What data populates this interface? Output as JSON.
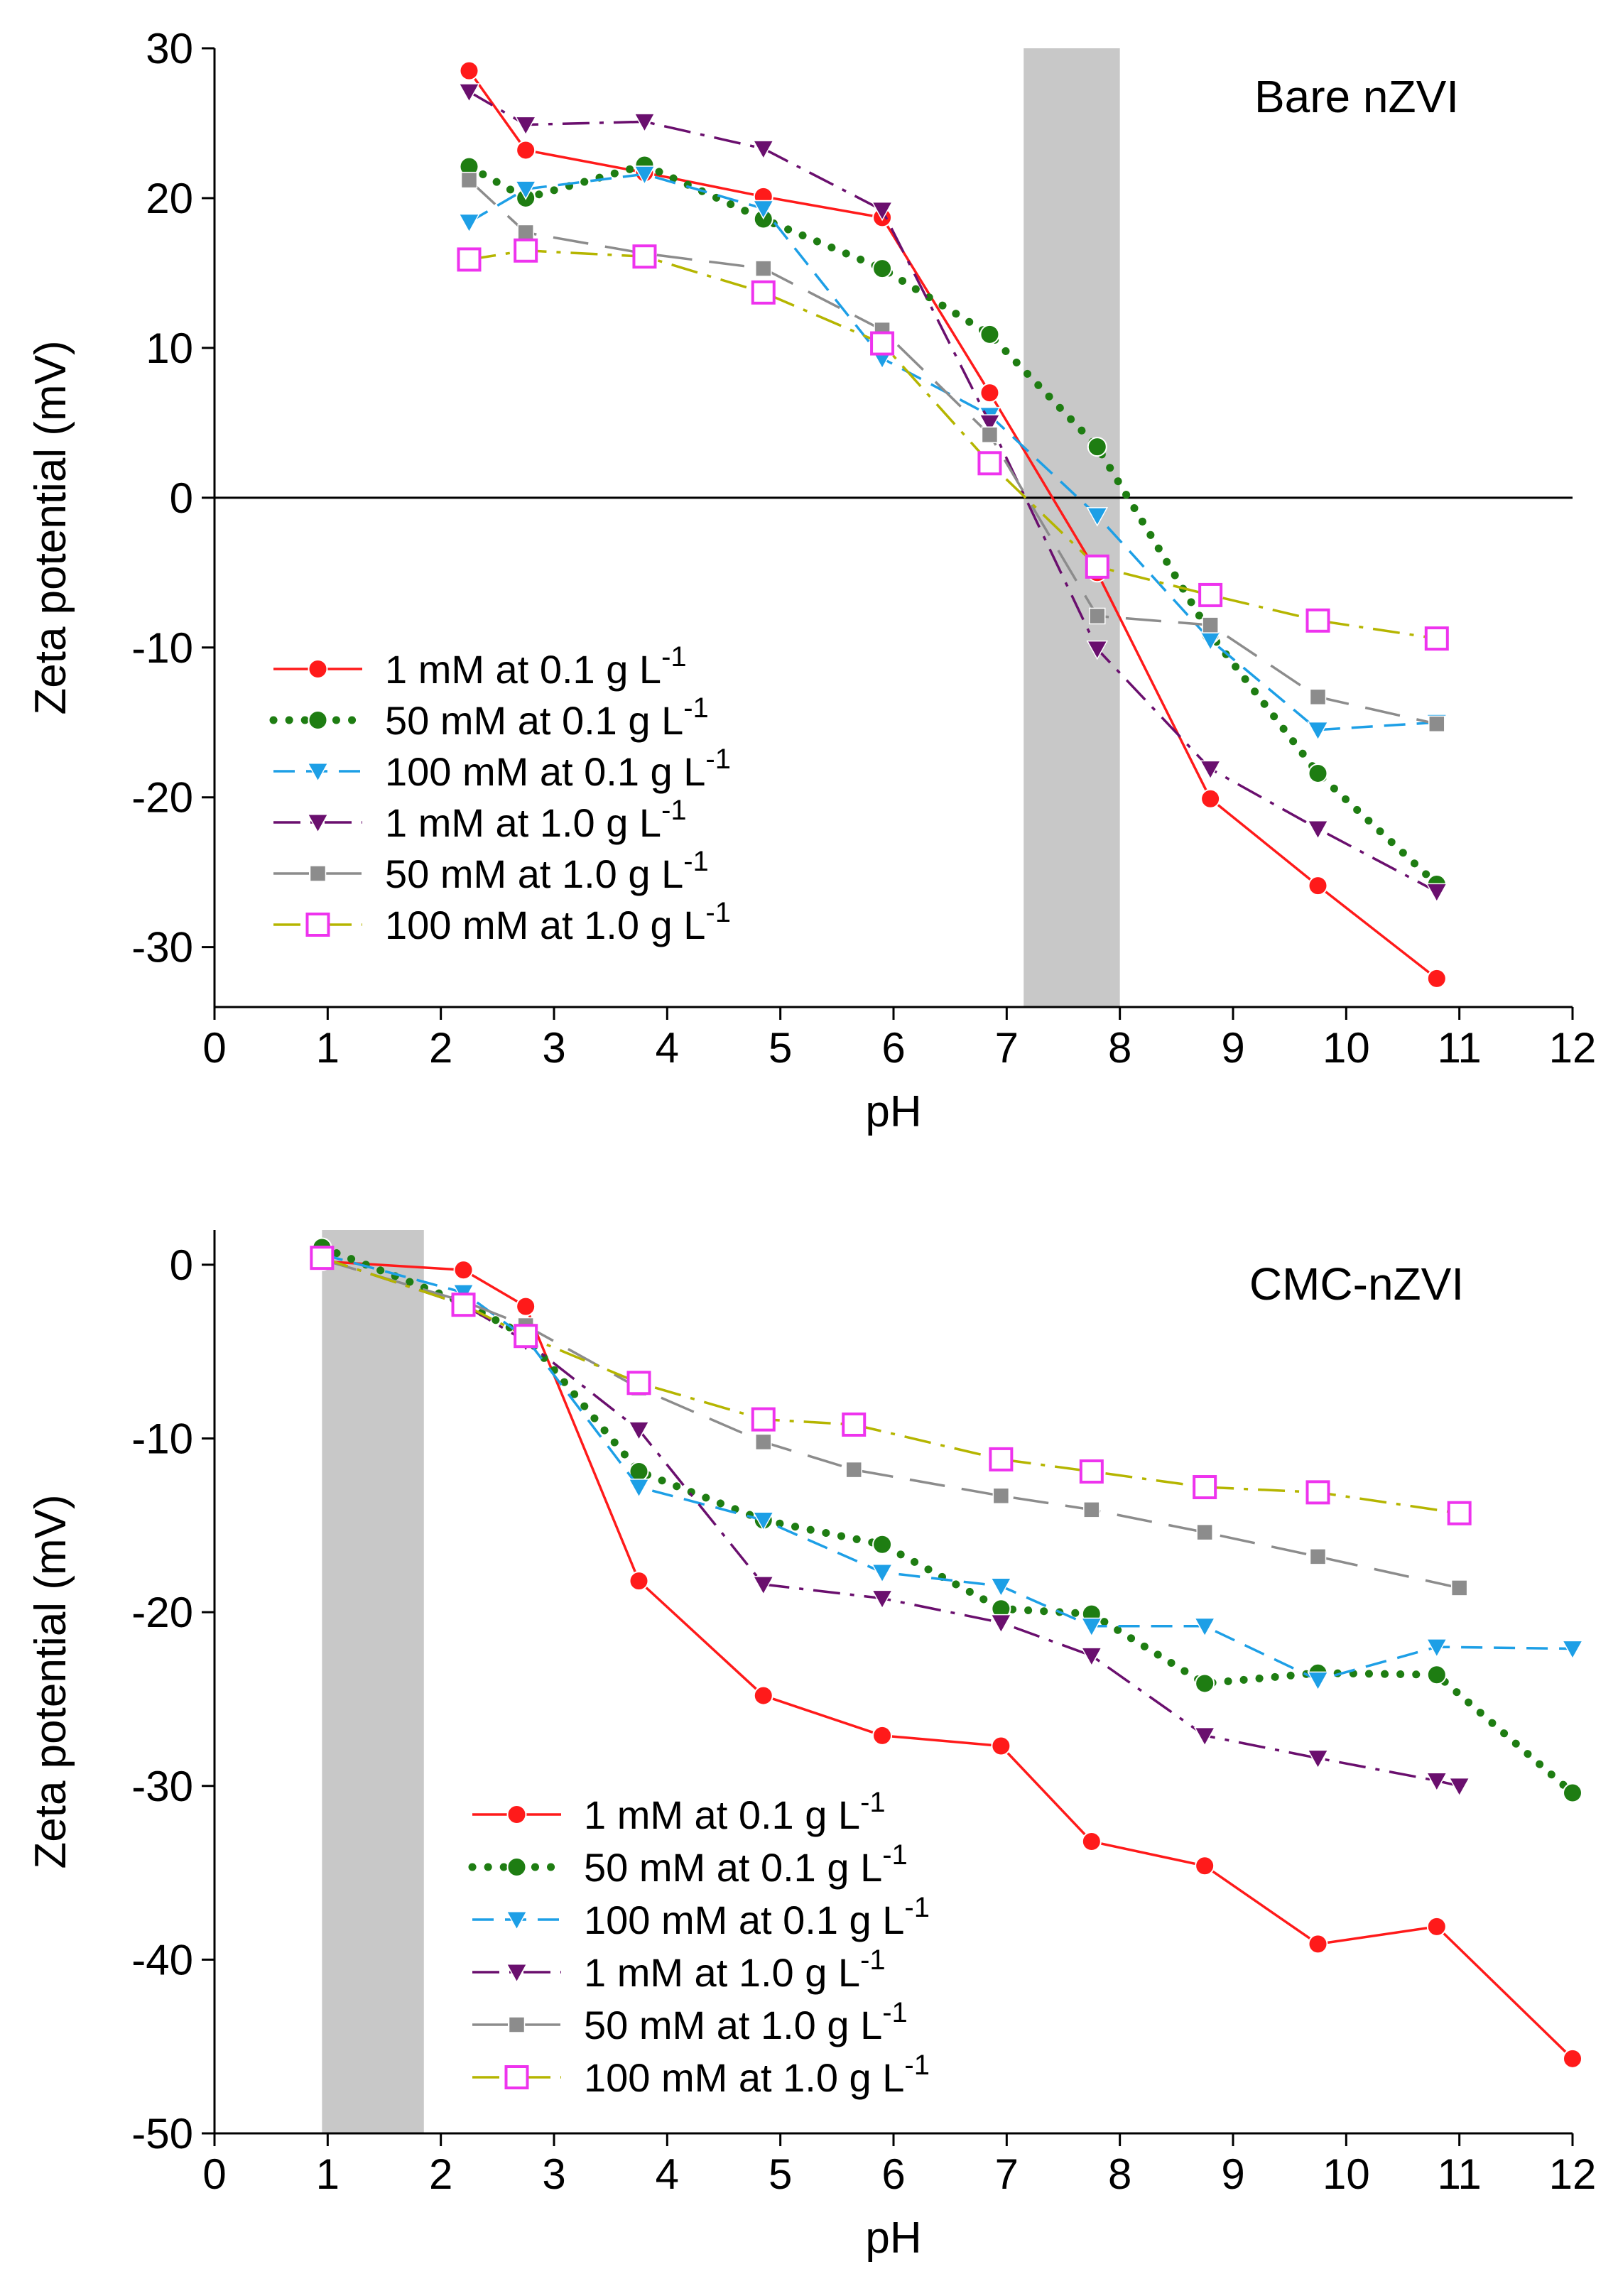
{
  "chart_data": [
    {
      "type": "line",
      "title": "Bare nZVI",
      "xlabel": "pH",
      "ylabel": "Zeta potential (mV)",
      "xlim": [
        0,
        12
      ],
      "ylim": [
        -34,
        30
      ],
      "xticks": [
        0,
        1,
        2,
        3,
        4,
        5,
        6,
        7,
        8,
        9,
        10,
        11,
        12
      ],
      "yticks": [
        30,
        20,
        10,
        0,
        -10,
        -20,
        -30
      ],
      "shaded_region": [
        7.15,
        8.0
      ],
      "zero_line": true,
      "legend_position": "bottom-left",
      "series": [
        {
          "name": "1 mM at 0.1 g L",
          "name_sup": "-1",
          "color": "#ff1a1a",
          "style": "solid",
          "marker": "circle",
          "x": [
            2.25,
            2.75,
            3.8,
            4.85,
            5.9,
            6.85,
            7.8,
            8.8,
            9.75,
            10.8
          ],
          "y": [
            28.5,
            23.2,
            21.7,
            20.1,
            18.7,
            7.0,
            -5.0,
            -20.1,
            -25.9,
            -32.1
          ]
        },
        {
          "name": "50 mM at 0.1 g L",
          "name_sup": "-1",
          "color": "#1e7d12",
          "style": "dotted",
          "marker": "circle",
          "x": [
            2.25,
            2.75,
            3.8,
            4.85,
            5.9,
            6.85,
            7.8,
            8.8,
            9.75,
            10.8
          ],
          "y": [
            22.1,
            20.0,
            22.2,
            18.6,
            15.3,
            10.9,
            3.4,
            -9.1,
            -18.4,
            -25.8
          ]
        },
        {
          "name": "100 mM at 0.1 g L",
          "name_sup": "-1",
          "color": "#1d9fe6",
          "style": "dashed",
          "marker": "triangle-down",
          "x": [
            2.25,
            2.75,
            3.8,
            4.85,
            5.9,
            6.85,
            7.8,
            8.8,
            9.75,
            10.8
          ],
          "y": [
            18.4,
            20.6,
            21.6,
            19.3,
            9.3,
            5.5,
            -1.2,
            -9.5,
            -15.5,
            -15.0
          ]
        },
        {
          "name": "1 mM at 1.0 g L",
          "name_sup": "-1",
          "color": "#6a0f6e",
          "style": "dashdot",
          "marker": "triangle-down",
          "x": [
            2.25,
            2.75,
            3.8,
            4.85,
            5.9,
            6.85,
            7.8,
            8.8,
            9.75,
            10.8
          ],
          "y": [
            27.1,
            24.9,
            25.1,
            23.3,
            19.2,
            5.0,
            -10.1,
            -18.1,
            -22.1,
            -26.3
          ]
        },
        {
          "name": "50 mM at 1.0 g L",
          "name_sup": "-1",
          "color": "#8c8c8c",
          "style": "longdash",
          "marker": "square",
          "x": [
            2.25,
            2.75,
            3.8,
            4.85,
            5.9,
            6.85,
            7.8,
            8.8,
            9.75,
            10.8
          ],
          "y": [
            21.2,
            17.7,
            16.3,
            15.3,
            11.2,
            4.2,
            -7.9,
            -8.5,
            -13.3,
            -15.1
          ]
        },
        {
          "name": "100 mM at 1.0 g L",
          "name_sup": "-1",
          "color": "#b5b500",
          "style": "dashdot",
          "marker": "square-open",
          "marker_color": "#ee33ee",
          "x": [
            2.25,
            2.75,
            3.8,
            4.85,
            5.9,
            6.85,
            7.8,
            8.8,
            9.75,
            10.8
          ],
          "y": [
            15.9,
            16.5,
            16.1,
            13.7,
            10.3,
            2.3,
            -4.6,
            -6.5,
            -8.2,
            -9.4
          ]
        }
      ]
    },
    {
      "type": "line",
      "title": "CMC-nZVI",
      "xlabel": "pH",
      "ylabel": "Zeta potential (mV)",
      "xlim": [
        0,
        12
      ],
      "ylim": [
        -50,
        2
      ],
      "xticks": [
        0,
        1,
        2,
        3,
        4,
        5,
        6,
        7,
        8,
        9,
        10,
        11,
        12
      ],
      "yticks": [
        0,
        -10,
        -20,
        -30,
        -40,
        -50
      ],
      "shaded_region": [
        0.95,
        1.85
      ],
      "zero_line": false,
      "legend_position": "bottom-center",
      "series": [
        {
          "name": "1 mM at 0.1 g L",
          "name_sup": "-1",
          "color": "#ff1a1a",
          "style": "solid",
          "marker": "circle",
          "x": [
            0.95,
            2.2,
            2.75,
            3.75,
            4.85,
            5.9,
            6.95,
            7.75,
            8.75,
            9.75,
            10.8,
            12.0
          ],
          "y": [
            0.2,
            -0.3,
            -2.4,
            -18.2,
            -24.8,
            -27.1,
            -27.7,
            -33.2,
            -34.6,
            -39.1,
            -38.1,
            -45.7
          ]
        },
        {
          "name": "50 mM at 0.1 g L",
          "name_sup": "-1",
          "color": "#1e7d12",
          "style": "dotted",
          "marker": "circle",
          "x": [
            0.95,
            2.2,
            2.75,
            3.75,
            4.85,
            5.9,
            6.95,
            7.75,
            8.75,
            9.75,
            10.8,
            12.0
          ],
          "y": [
            1.0,
            -2.2,
            -4.1,
            -11.9,
            -14.7,
            -16.1,
            -19.8,
            -20.1,
            -24.1,
            -23.5,
            -23.6,
            -30.4
          ]
        },
        {
          "name": "100 mM at 0.1 g L",
          "name_sup": "-1",
          "color": "#1d9fe6",
          "style": "dashed",
          "marker": "triangle-down",
          "x": [
            0.95,
            2.2,
            2.75,
            3.75,
            4.85,
            5.9,
            6.95,
            7.75,
            8.75,
            9.75,
            10.8,
            12.0
          ],
          "y": [
            0.6,
            -1.6,
            -4.2,
            -12.8,
            -14.7,
            -17.7,
            -18.5,
            -20.8,
            -20.8,
            -23.9,
            -22.0,
            -22.1
          ]
        },
        {
          "name": "1 mM at 1.0 g L",
          "name_sup": "-1",
          "color": "#6a0f6e",
          "style": "dashdot",
          "marker": "triangle-down",
          "x": [
            0.95,
            2.2,
            2.75,
            3.75,
            4.85,
            5.9,
            6.95,
            7.75,
            8.75,
            9.75,
            10.8,
            11.0
          ],
          "y": [
            0.4,
            -2.3,
            -4.4,
            -9.5,
            -18.4,
            -19.2,
            -20.6,
            -22.5,
            -27.1,
            -28.4,
            -29.7,
            -30.0
          ]
        },
        {
          "name": "50 mM at 1.0 g L",
          "name_sup": "-1",
          "color": "#8c8c8c",
          "style": "longdash",
          "marker": "square",
          "x": [
            0.95,
            2.2,
            2.75,
            3.75,
            4.85,
            5.65,
            6.95,
            7.75,
            8.75,
            9.75,
            11.0
          ],
          "y": [
            0.3,
            -2.1,
            -3.5,
            -7.1,
            -10.2,
            -11.8,
            -13.3,
            -14.1,
            -15.4,
            -16.8,
            -18.6
          ]
        },
        {
          "name": "100 mM at 1.0 g L",
          "name_sup": "-1",
          "color": "#b5b500",
          "style": "dashdot",
          "marker": "square-open",
          "marker_color": "#ee33ee",
          "x": [
            0.95,
            2.2,
            2.75,
            3.75,
            4.85,
            5.65,
            6.95,
            7.75,
            8.75,
            9.75,
            11.0
          ],
          "y": [
            0.4,
            -2.3,
            -4.1,
            -6.8,
            -8.9,
            -9.2,
            -11.2,
            -11.9,
            -12.8,
            -13.1,
            -14.3
          ]
        }
      ]
    }
  ]
}
